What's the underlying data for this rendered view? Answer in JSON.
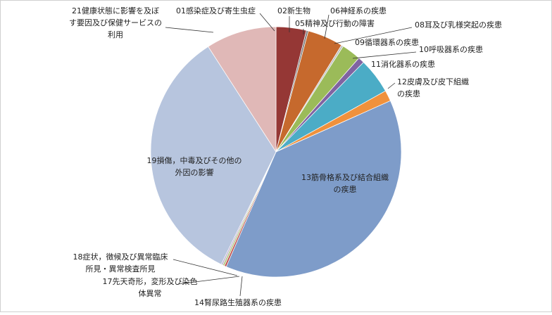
{
  "chart_data": {
    "type": "pie",
    "title": "",
    "slices": [
      {
        "label": "01感染症及び寄生虫症",
        "value": 0.01,
        "color": "#4f81bd"
      },
      {
        "label": "02新生物",
        "value": 3.9,
        "color": "#953735"
      },
      {
        "label": "05精神及び行動の障害",
        "value": 0.25,
        "color": "#7f7f7f"
      },
      {
        "label": "06神経系の疾患",
        "value": 4.6,
        "color": "#c6692d"
      },
      {
        "label": "08耳及び乳様突起の疾患",
        "value": 0.25,
        "color": "#bfbfbf"
      },
      {
        "label": "09循環器系の疾患",
        "value": 2.5,
        "color": "#9bbb59"
      },
      {
        "label": "10呼吸器系の疾患",
        "value": 0.8,
        "color": "#8064a2"
      },
      {
        "label": "11消化器系の疾患",
        "value": 4.6,
        "color": "#4bacc6"
      },
      {
        "label": "12皮膚及び皮下組織の疾患",
        "value": 1.4,
        "color": "#f0913c"
      },
      {
        "label": "13筋骨格系及び結合組織の疾患",
        "value": 38.2,
        "color": "#7e9cc9"
      },
      {
        "label": "14腎尿路生殖器系の疾患",
        "value": 0.25,
        "color": "#c0504d"
      },
      {
        "label": "17先天奇形，変形及び染色体異常",
        "value": 0.25,
        "color": "#b8c98a"
      },
      {
        "label": "18症状，徴候及び異常臨床所見・異常検査所見",
        "value": 0.2,
        "color": "#bbadd0"
      },
      {
        "label": "19損傷，中毒及びその他の外因の影響",
        "value": 33.7,
        "color": "#b7c5de"
      },
      {
        "label": "21健康状態に影響を及ぼす要因及び保健サービスの利用",
        "value": 9.1,
        "color": "#e0b8b7"
      }
    ],
    "label_lines": {
      "01": [
        "01感染症及び寄生虫症"
      ],
      "02": [
        "02新生物"
      ],
      "05": [
        "05精神及び行動の障害"
      ],
      "06": [
        "06神経系の疾患"
      ],
      "08": [
        "08耳及び乳様突起の疾患"
      ],
      "09": [
        "09循環器系の疾患"
      ],
      "10": [
        "10呼吸器系の疾患"
      ],
      "11": [
        "11消化器系の疾患"
      ],
      "12": [
        "12皮膚及び皮下組織",
        "の疾患"
      ],
      "13": [
        "13筋骨格系及び結合組織",
        "の疾患"
      ],
      "14": [
        "14腎尿路生殖器系の疾患"
      ],
      "17": [
        "17先天奇形，変形及び染色",
        "体異常"
      ],
      "18": [
        "18症状，徴候及び異常臨床",
        "所見・異常検査所見"
      ],
      "19": [
        "19損傷，中毒及びその他の",
        "外因の影響"
      ],
      "21": [
        "21健康状態に影響を及ぼ",
        "す要因及び保健サービスの",
        "利用"
      ]
    }
  }
}
